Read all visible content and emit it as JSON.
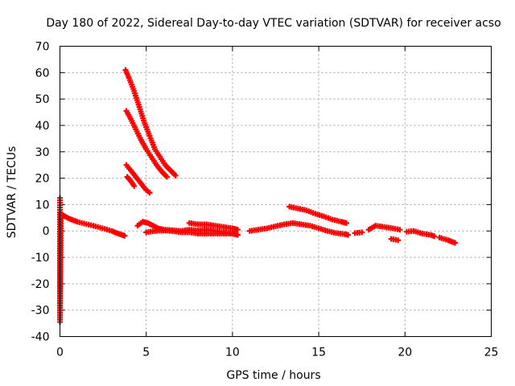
{
  "chart_data": {
    "type": "scatter",
    "title": "Day 180 of 2022, Sidereal Day-to-day VTEC variation (SDTVAR) for receiver acso",
    "xlabel": "GPS time / hours",
    "ylabel": "SDTVAR / TECUs",
    "xlim": [
      0,
      25
    ],
    "ylim": [
      -40,
      70
    ],
    "x_ticks": [
      "0",
      "5",
      "10",
      "15",
      "20",
      "25"
    ],
    "x_tick_values": [
      0,
      5,
      10,
      15,
      20,
      25
    ],
    "y_ticks": [
      "-40",
      "-30",
      "-20",
      "-10",
      "0",
      "10",
      "20",
      "30",
      "40",
      "50",
      "60",
      "70"
    ],
    "y_tick_values": [
      -40,
      -30,
      -20,
      -10,
      0,
      10,
      20,
      30,
      40,
      50,
      60,
      70
    ],
    "grid": true,
    "marker": "+",
    "color": "#ff0000",
    "series": [
      {
        "name": "s1",
        "x": [
          0.05,
          0.3,
          0.6,
          1.0,
          1.4,
          1.8,
          2.2,
          2.6,
          3.0,
          3.3,
          3.6,
          3.75
        ],
        "y": [
          6.5,
          5.5,
          4.5,
          3.5,
          2.8,
          2.2,
          1.5,
          0.8,
          0.0,
          -0.8,
          -1.5,
          -1.8
        ]
      },
      {
        "name": "s2",
        "x": [
          3.8,
          4.0,
          4.3,
          4.6,
          4.9,
          5.2,
          5.5,
          5.8,
          6.1,
          6.4,
          6.7
        ],
        "y": [
          61,
          58,
          53,
          47,
          41,
          36,
          31,
          28,
          25,
          23,
          21
        ]
      },
      {
        "name": "s3",
        "x": [
          3.85,
          4.1,
          4.4,
          4.7,
          5.0,
          5.3,
          5.6,
          5.9,
          6.2
        ],
        "y": [
          45.5,
          42.5,
          38.5,
          34.5,
          31,
          28,
          25,
          22.5,
          20.5
        ]
      },
      {
        "name": "s4",
        "x": [
          3.85,
          4.1,
          4.4,
          4.7,
          5.0,
          5.2
        ],
        "y": [
          25,
          23,
          20.5,
          18,
          15.5,
          14.5
        ]
      },
      {
        "name": "s5",
        "x": [
          3.9,
          4.1,
          4.3
        ],
        "y": [
          20.5,
          19,
          17
        ]
      },
      {
        "name": "s6",
        "x": [
          4.5,
          4.8,
          5.1,
          5.4,
          5.7,
          6.0,
          6.5,
          7.0,
          7.5,
          8.0,
          8.5,
          9.0,
          9.5,
          10.0
        ],
        "y": [
          2.0,
          3.5,
          3.0,
          2.0,
          1.0,
          0.5,
          0.3,
          0.0,
          0.5,
          0.2,
          0.5,
          0.0,
          -0.5,
          -1.0
        ]
      },
      {
        "name": "s7",
        "x": [
          5.0,
          5.5,
          6.0,
          6.5,
          7.0,
          7.5,
          8.0,
          8.5,
          9.0,
          9.5,
          10.0,
          10.3
        ],
        "y": [
          -0.5,
          0.0,
          0.2,
          0.0,
          -0.5,
          -0.5,
          -1.0,
          -1.0,
          -1.0,
          -1.0,
          -1.0,
          -1.5
        ]
      },
      {
        "name": "s8",
        "x": [
          7.5,
          8.0,
          8.5,
          9.0,
          9.5,
          10.0,
          10.3
        ],
        "y": [
          3.0,
          2.5,
          2.5,
          2.0,
          1.5,
          1.0,
          0.5
        ]
      },
      {
        "name": "s9",
        "x": [
          11.0,
          11.5,
          12.0,
          12.5,
          13.0,
          13.5,
          14.0,
          14.5,
          15.0,
          15.5,
          16.0,
          16.5,
          16.7
        ],
        "y": [
          0.0,
          0.5,
          1.0,
          1.8,
          2.5,
          3.0,
          2.5,
          2.0,
          1.0,
          0.0,
          -0.8,
          -1.2,
          -1.5
        ]
      },
      {
        "name": "s10",
        "x": [
          13.3,
          13.8,
          14.3,
          14.8,
          15.3,
          15.8,
          16.3,
          16.6
        ],
        "y": [
          9.2,
          8.5,
          7.8,
          6.5,
          5.5,
          4.3,
          3.5,
          3.0
        ]
      },
      {
        "name": "s11",
        "x": [
          17.1,
          17.5
        ],
        "y": [
          -0.8,
          -0.5
        ]
      },
      {
        "name": "s12",
        "x": [
          17.9,
          18.3,
          18.8,
          19.3,
          19.7
        ],
        "y": [
          0.5,
          2.0,
          1.5,
          1.0,
          0.5
        ]
      },
      {
        "name": "s13",
        "x": [
          19.2,
          19.6
        ],
        "y": [
          -3.0,
          -3.5
        ]
      },
      {
        "name": "s14",
        "x": [
          20.1,
          20.5,
          21.0,
          21.5,
          21.7
        ],
        "y": [
          -0.3,
          0.0,
          -1.0,
          -1.5,
          -2.0
        ]
      },
      {
        "name": "s15",
        "x": [
          22.0,
          22.5,
          22.9
        ],
        "y": [
          -2.5,
          -3.5,
          -4.5
        ]
      },
      {
        "name": "s16",
        "x": [
          0.0,
          0.0,
          0.0,
          0.05
        ],
        "y": [
          12.5,
          -13.0,
          -34.5,
          6.5
        ]
      }
    ]
  }
}
